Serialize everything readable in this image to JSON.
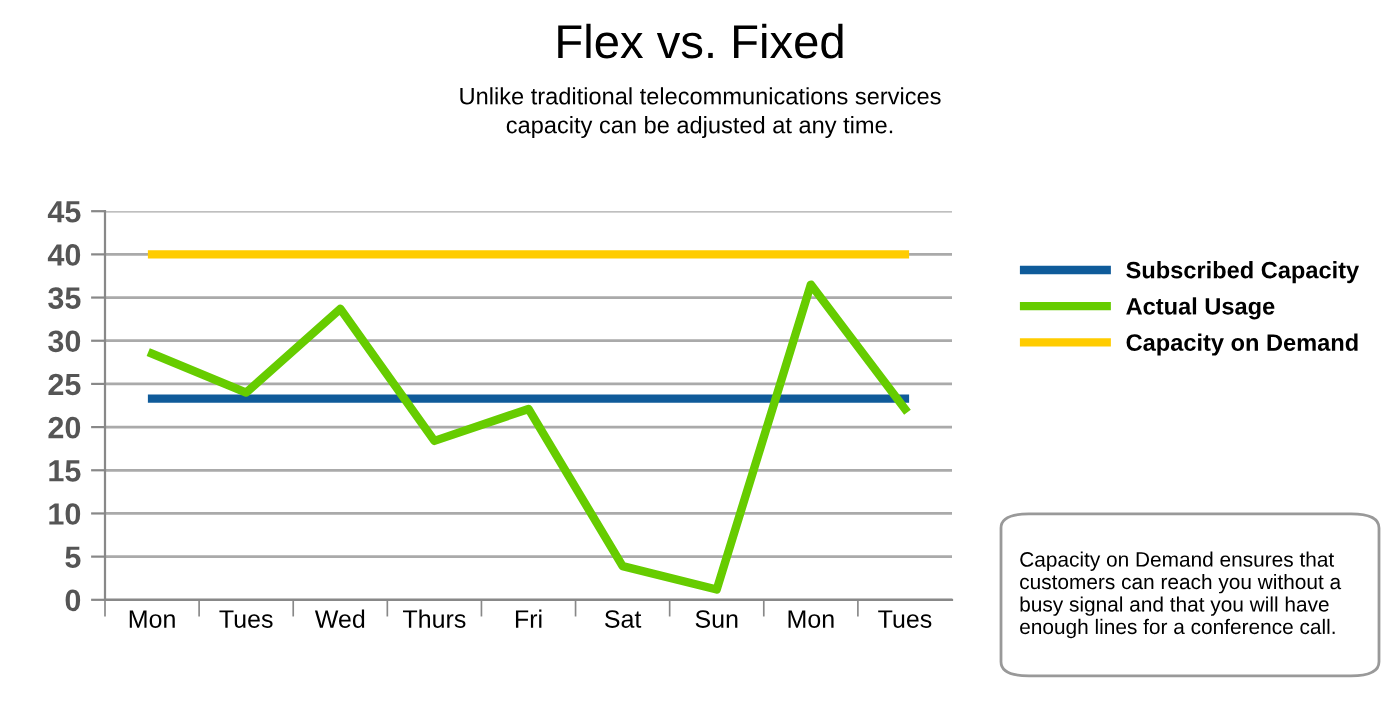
{
  "chart_data": {
    "type": "line",
    "title": "Flex vs. Fixed",
    "subtitle": "Unlike traditional telecommunications services\ncapacity can be adjusted at any time.",
    "categories": [
      "Mon",
      "Tues",
      "Wed",
      "Thurs",
      "Fri",
      "Sat",
      "Sun",
      "Mon",
      "Tues"
    ],
    "series": [
      {
        "name": "Subscribed Capacity",
        "color": "#0f5b9a",
        "values": [
          23.3,
          23.3,
          23.3,
          23.3,
          23.3,
          23.3,
          23.3,
          23.3,
          23.3
        ]
      },
      {
        "name": "Actual Usage",
        "color": "#66cc00",
        "values": [
          28.5,
          24.0,
          33.7,
          18.4,
          22.1,
          3.9,
          1.2,
          36.5,
          22.1
        ]
      },
      {
        "name": "Capacity on Demand",
        "color": "#ffcc00",
        "values": [
          40,
          40,
          40,
          40,
          40,
          40,
          40,
          40,
          40
        ]
      }
    ],
    "ylim": [
      0,
      45
    ],
    "yticks": [
      0,
      5,
      10,
      15,
      20,
      25,
      30,
      35,
      40,
      45
    ],
    "grid": "y",
    "legend": "right",
    "marker": "none",
    "line_style": "solid",
    "annotations": [
      "Capacity on Demand ensures that\ncustomers can reach you without a\nbusy signal and that you will have\nenough lines for a conference call."
    ]
  }
}
